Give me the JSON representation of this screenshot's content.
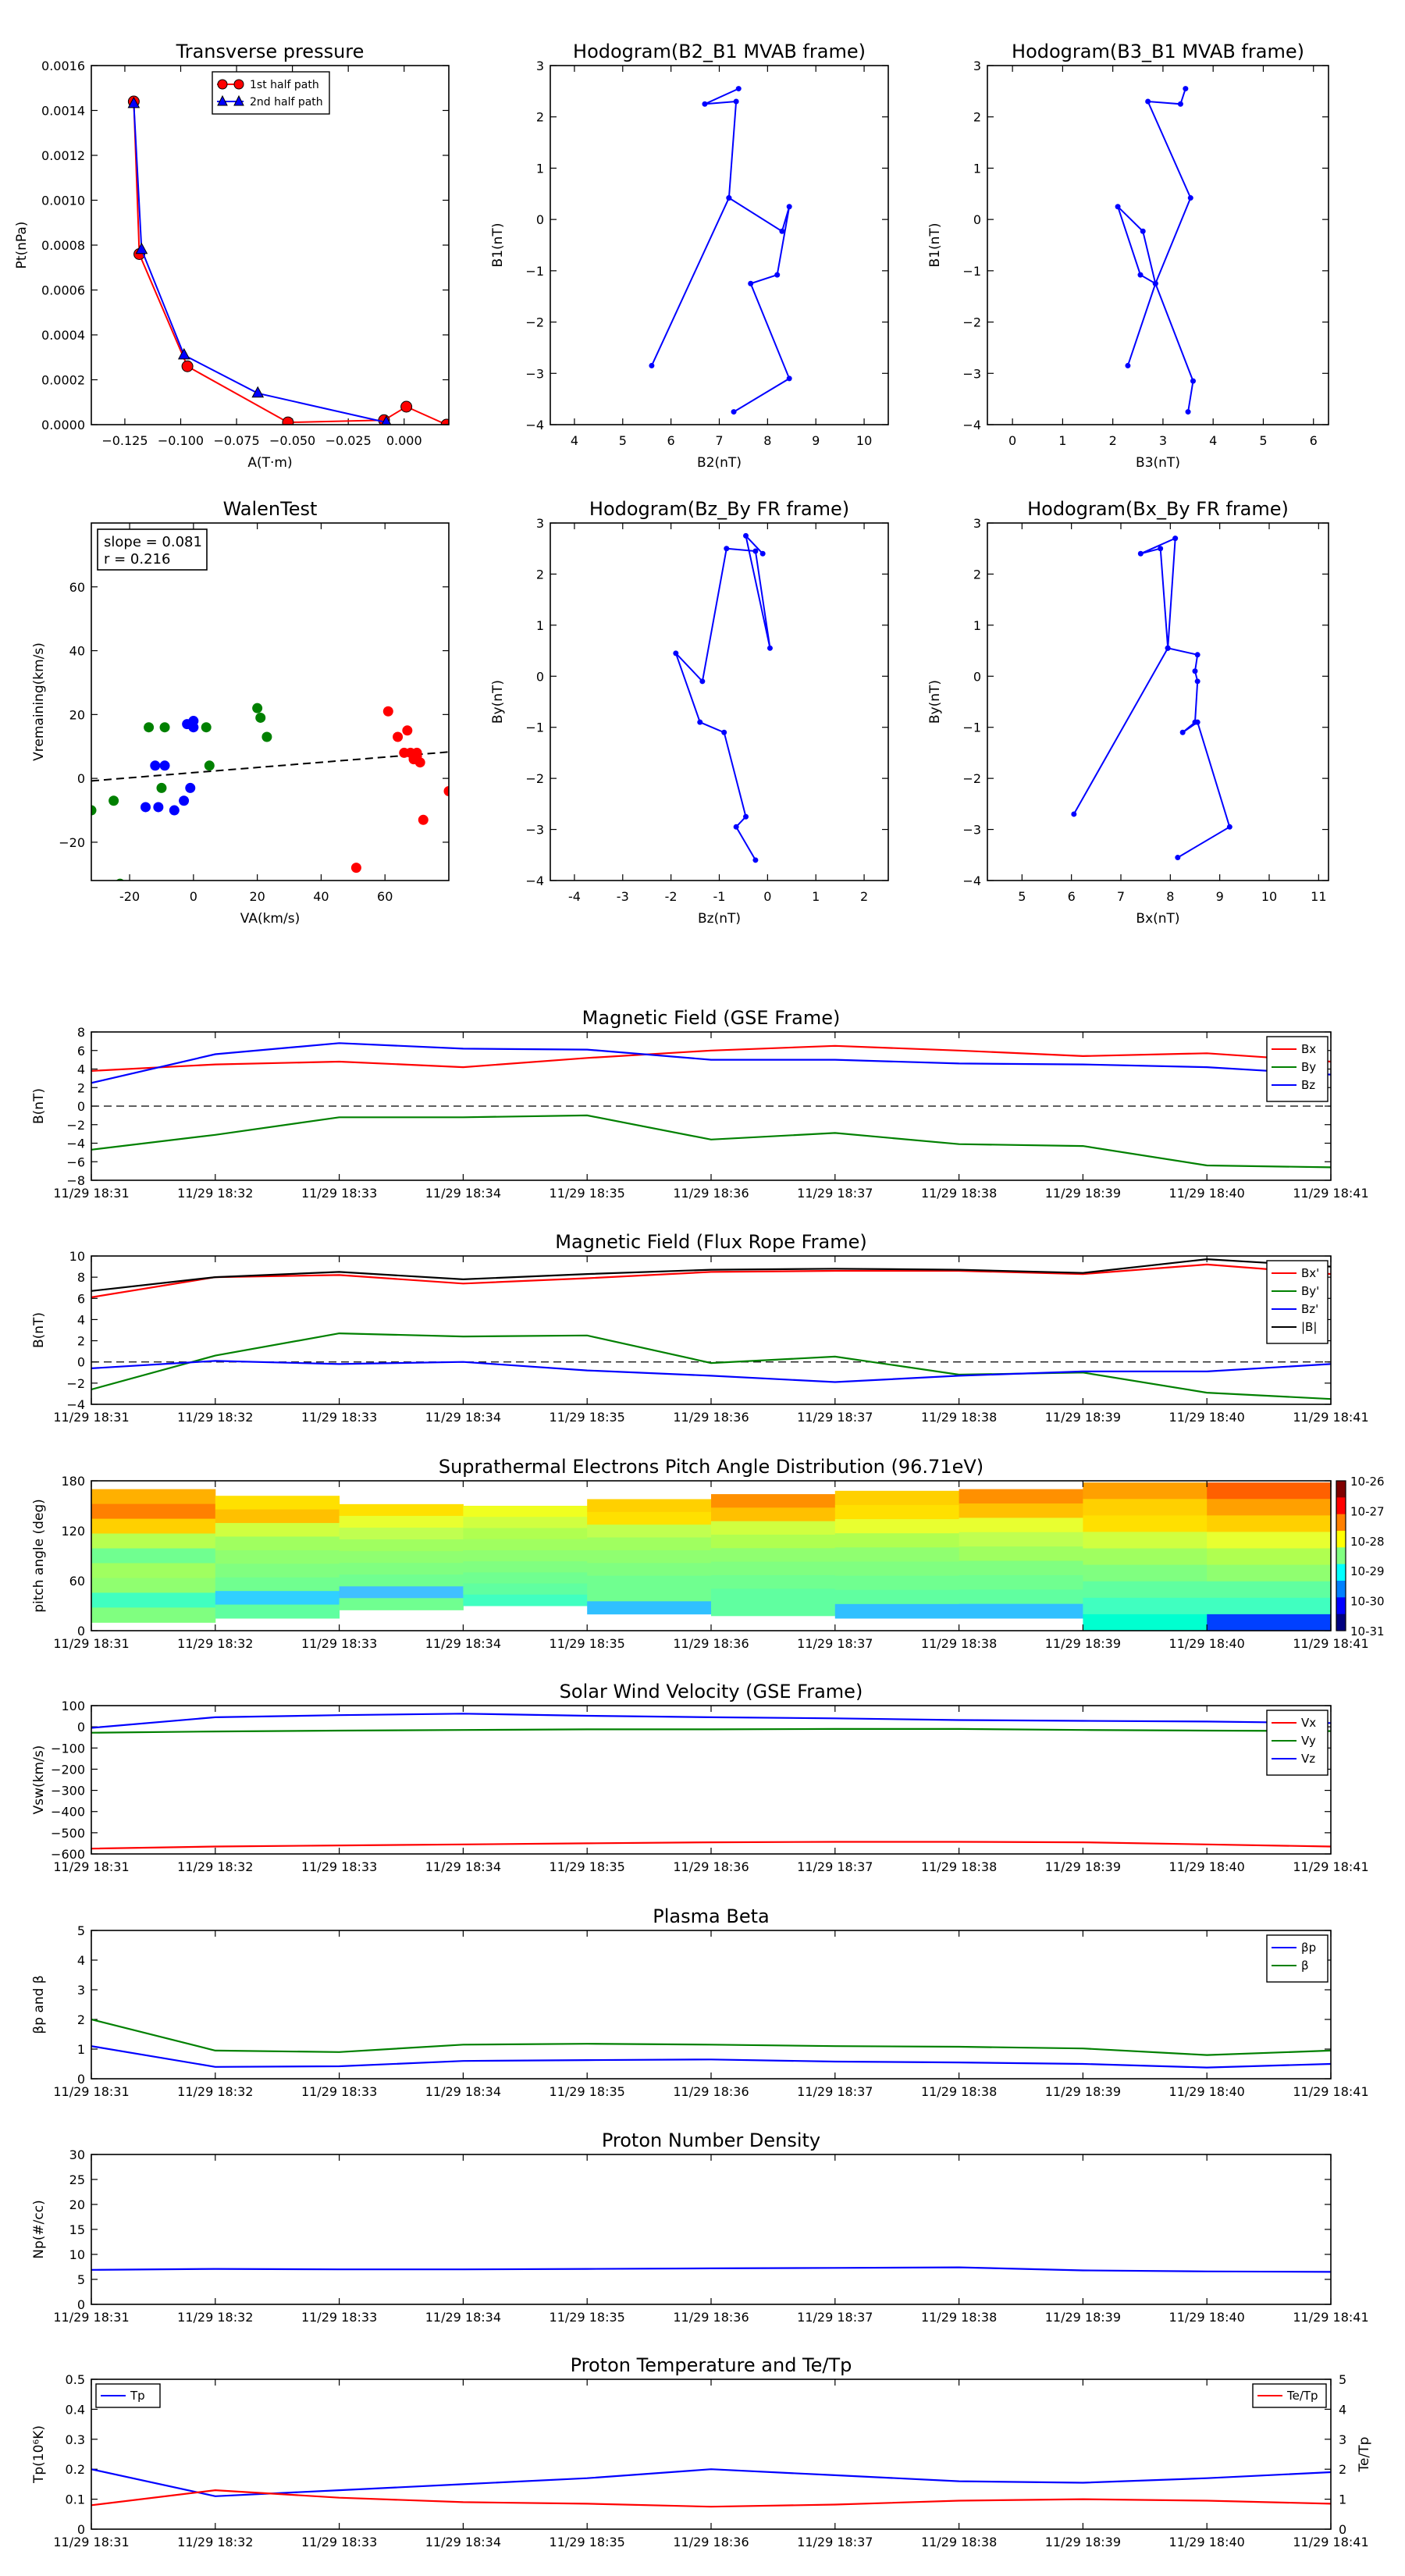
{
  "times": [
    "11/29 18:31",
    "11/29 18:32",
    "11/29 18:33",
    "11/29 18:34",
    "11/29 18:35",
    "11/29 18:36",
    "11/29 18:37",
    "11/29 18:38",
    "11/29 18:39",
    "11/29 18:40",
    "11/29 18:41"
  ],
  "chart_data": [
    {
      "type": "line",
      "title": "Transverse pressure",
      "xlabel": "A(T·m)",
      "ylabel": "Pt(nPa)",
      "xlim": [
        -0.14,
        0.02
      ],
      "ylim": [
        0,
        0.0016
      ],
      "xticks": [
        -0.125,
        -0.1,
        -0.075,
        -0.05,
        -0.025,
        0.0
      ],
      "xtick_labels": [
        "−0.125",
        "−0.100",
        "−0.075",
        "−0.050",
        "−0.025",
        "0.000"
      ],
      "yticks": [
        0,
        0.0002,
        0.0004,
        0.0006,
        0.0008,
        0.001,
        0.0012,
        0.0014,
        0.0016
      ],
      "ytick_labels": [
        "0.0000",
        "0.0002",
        "0.0004",
        "0.0006",
        "0.0008",
        "0.0010",
        "0.0012",
        "0.0014",
        "0.0016"
      ],
      "legend": "upper-right-inside",
      "series": [
        {
          "name": "1st half path",
          "color": "#ff0000",
          "marker": "circle",
          "x": [
            -0.121,
            -0.1185,
            -0.097,
            -0.052,
            -0.009,
            0.001,
            0.019
          ],
          "y": [
            0.00144,
            0.00076,
            0.00026,
            1e-05,
            2e-05,
            8e-05,
            0.0
          ]
        },
        {
          "name": "2nd half path",
          "color": "#0000ff",
          "marker": "triangle",
          "x": [
            -0.121,
            -0.1175,
            -0.0985,
            -0.0655,
            -0.008
          ],
          "y": [
            0.00143,
            0.00078,
            0.00031,
            0.00014,
            1e-05
          ]
        }
      ]
    },
    {
      "type": "line",
      "title": "Hodogram(B2_B1 MVAB frame)",
      "xlabel": "B2(nT)",
      "ylabel": "B1(nT)",
      "xlim": [
        3.5,
        10.5
      ],
      "ylim": [
        -4,
        3
      ],
      "xticks": [
        4,
        5,
        6,
        7,
        8,
        9,
        10
      ],
      "yticks": [
        -4,
        -3,
        -2,
        -1,
        0,
        1,
        2,
        3
      ],
      "series": [
        {
          "color": "#0000ff",
          "x": [
            7.3,
            8.45,
            7.65,
            8.2,
            8.45,
            8.3,
            7.2,
            5.6
          ],
          "y": [
            -3.75,
            -3.1,
            -1.25,
            -1.08,
            0.25,
            -0.23,
            0.42,
            -2.85
          ]
        },
        {
          "color": "#0000ff",
          "x": [
            7.2,
            7.35,
            6.7,
            7.4
          ],
          "y": [
            0.42,
            2.3,
            2.25,
            2.55
          ]
        }
      ]
    },
    {
      "type": "line",
      "title": "Hodogram(B3_B1 MVAB frame)",
      "xlabel": "B3(nT)",
      "ylabel": "B1(nT)",
      "xlim": [
        -0.5,
        6.3
      ],
      "ylim": [
        -4,
        3
      ],
      "xticks": [
        0,
        1,
        2,
        3,
        4,
        5,
        6
      ],
      "yticks": [
        -4,
        -3,
        -2,
        -1,
        0,
        1,
        2,
        3
      ],
      "series": [
        {
          "color": "#0000ff",
          "x": [
            3.5,
            3.6,
            2.85,
            2.55,
            2.1,
            2.6,
            2.85,
            2.3
          ],
          "y": [
            -3.75,
            -3.15,
            -1.25,
            -1.08,
            0.25,
            -0.23,
            -1.25,
            -2.85
          ]
        },
        {
          "color": "#0000ff",
          "x": [
            2.85,
            3.55,
            2.7,
            3.35,
            3.45
          ],
          "y": [
            -1.25,
            0.42,
            2.3,
            2.25,
            2.55
          ]
        }
      ]
    },
    {
      "type": "scatter",
      "title": "WalenTest",
      "xlabel": "VA(km/s)",
      "ylabel": "Vremaining(km/s)",
      "xlim": [
        -32,
        80
      ],
      "ylim": [
        -32,
        80
      ],
      "xticks": [
        -20,
        0,
        20,
        40,
        60
      ],
      "yticks": [
        -20,
        0,
        20,
        40,
        60
      ],
      "annotation": [
        "slope = 0.081",
        "r = 0.216"
      ],
      "fit_line": {
        "slope": 0.081,
        "intercept": 1.8
      },
      "series": [
        {
          "color": "#ff0000",
          "x": [
            61,
            64,
            67,
            66,
            68,
            70,
            69,
            71,
            70,
            72,
            51,
            80
          ],
          "y": [
            21,
            13,
            15,
            8,
            8,
            7,
            6,
            5,
            8,
            -13,
            -28,
            -4
          ]
        },
        {
          "color": "#008000",
          "x": [
            -32,
            -25,
            -14,
            -9,
            20,
            21,
            23,
            4,
            5,
            -10,
            -23
          ],
          "y": [
            -10,
            -7,
            16,
            16,
            22,
            19,
            13,
            16,
            4,
            -3,
            -33
          ]
        },
        {
          "color": "#0000ff",
          "x": [
            -15,
            -11,
            -6,
            -3,
            -1,
            0,
            -2,
            -9,
            -12,
            -1,
            0
          ],
          "y": [
            -9,
            -9,
            -10,
            -7,
            17,
            18,
            17,
            4,
            4,
            -3,
            16
          ]
        }
      ]
    },
    {
      "type": "line",
      "title": "Hodogram(Bz_By FR frame)",
      "xlabel": "Bz(nT)",
      "ylabel": "By(nT)",
      "xlim": [
        -4.5,
        2.5
      ],
      "ylim": [
        -4,
        3
      ],
      "xticks": [
        -4,
        -3,
        -2,
        -1,
        0,
        1,
        2
      ],
      "yticks": [
        -4,
        -3,
        -2,
        -1,
        0,
        1,
        2,
        3
      ],
      "series": [
        {
          "color": "#0000ff",
          "x": [
            -0.25,
            -0.65,
            -0.45,
            -0.9,
            -1.4,
            -1.9,
            -1.35,
            -0.85,
            -0.25,
            0.05,
            -0.45,
            -0.1
          ],
          "y": [
            -3.6,
            -2.95,
            -2.75,
            -1.1,
            -0.9,
            0.45,
            -0.1,
            2.5,
            2.45,
            0.55,
            2.75,
            2.4
          ]
        }
      ]
    },
    {
      "type": "line",
      "title": "Hodogram(Bx_By FR frame)",
      "xlabel": "Bx(nT)",
      "ylabel": "By(nT)",
      "xlim": [
        4.3,
        11.2
      ],
      "ylim": [
        -4,
        3
      ],
      "xticks": [
        5,
        6,
        7,
        8,
        9,
        10,
        11
      ],
      "yticks": [
        -4,
        -3,
        -2,
        -1,
        0,
        1,
        2,
        3
      ],
      "series": [
        {
          "color": "#0000ff",
          "x": [
            6.05,
            7.95,
            8.55,
            8.5,
            8.55,
            8.5,
            8.25,
            8.55,
            9.2,
            8.15
          ],
          "y": [
            -2.7,
            0.55,
            0.42,
            0.1,
            -0.1,
            -0.9,
            -1.1,
            -0.9,
            -2.95,
            -3.55
          ]
        },
        {
          "color": "#0000ff",
          "x": [
            7.95,
            7.8,
            7.4,
            8.1,
            7.95
          ],
          "y": [
            0.55,
            2.5,
            2.4,
            2.7,
            0.55
          ]
        }
      ]
    },
    {
      "type": "line",
      "title": "Magnetic Field (GSE Frame)",
      "ylabel": "B(nT)",
      "ylim": [
        -8,
        8
      ],
      "yticks": [
        -8,
        -6,
        -4,
        -2,
        0,
        2,
        4,
        6,
        8
      ],
      "zero_line": true,
      "legend": "upper-right",
      "series": [
        {
          "name": "Bx",
          "color": "#ff0000",
          "values": [
            3.8,
            4.5,
            4.8,
            4.2,
            5.2,
            6.0,
            6.5,
            6.0,
            5.4,
            5.7,
            4.8
          ]
        },
        {
          "name": "By",
          "color": "#008000",
          "values": [
            -4.7,
            -3.1,
            -1.2,
            -1.2,
            -1.0,
            -3.6,
            -2.9,
            -4.1,
            -4.3,
            -6.4,
            -6.6
          ]
        },
        {
          "name": "Bz",
          "color": "#0000ff",
          "values": [
            2.5,
            5.6,
            6.8,
            6.2,
            6.1,
            5.0,
            5.0,
            4.6,
            4.5,
            4.2,
            3.4
          ]
        }
      ]
    },
    {
      "type": "line",
      "title": "Magnetic Field (Flux Rope Frame)",
      "ylabel": "B(nT)",
      "ylim": [
        -4,
        10
      ],
      "yticks": [
        -4,
        -2,
        0,
        2,
        4,
        6,
        8,
        10
      ],
      "zero_line": true,
      "legend": "upper-right",
      "series": [
        {
          "name": "Bx'",
          "color": "#ff0000",
          "values": [
            6.1,
            8.0,
            8.2,
            7.4,
            7.9,
            8.5,
            8.6,
            8.6,
            8.3,
            9.2,
            8.3
          ]
        },
        {
          "name": "By'",
          "color": "#008000",
          "values": [
            -2.6,
            0.6,
            2.7,
            2.4,
            2.5,
            -0.1,
            0.5,
            -1.2,
            -1.0,
            -2.9,
            -3.5
          ]
        },
        {
          "name": "Bz'",
          "color": "#0000ff",
          "values": [
            -0.6,
            0.1,
            -0.2,
            0.0,
            -0.8,
            -1.3,
            -1.9,
            -1.3,
            -0.9,
            -0.9,
            -0.2
          ]
        },
        {
          "name": "|B|",
          "color": "#000000",
          "values": [
            6.7,
            8.0,
            8.5,
            7.8,
            8.3,
            8.7,
            8.8,
            8.7,
            8.4,
            9.7,
            9.0
          ]
        }
      ]
    },
    {
      "type": "heatmap",
      "title": "Suprathermal Electrons Pitch Angle Distribution (96.71eV)",
      "ylabel": "pitch angle (deg)",
      "ylim": [
        0,
        180
      ],
      "yticks": [
        0,
        60,
        120,
        180
      ],
      "colorbar_ticks": [
        "10-26",
        "10-27",
        "10-28",
        "10-29",
        "10-30",
        "10-31"
      ]
    },
    {
      "type": "line",
      "title": "Solar Wind Velocity (GSE Frame)",
      "ylabel": "Vsw(km/s)",
      "ylim": [
        -600,
        100
      ],
      "yticks": [
        -600,
        -500,
        -400,
        -300,
        -200,
        -100,
        0,
        100
      ],
      "legend": "upper-right",
      "series": [
        {
          "name": "Vx",
          "color": "#ff0000",
          "values": [
            -575,
            -565,
            -560,
            -555,
            -550,
            -545,
            -543,
            -543,
            -545,
            -555,
            -565
          ]
        },
        {
          "name": "Vy",
          "color": "#008000",
          "values": [
            -28,
            -22,
            -18,
            -15,
            -12,
            -12,
            -10,
            -10,
            -15,
            -18,
            -20
          ]
        },
        {
          "name": "Vz",
          "color": "#0000ff",
          "values": [
            -5,
            45,
            55,
            62,
            52,
            45,
            40,
            32,
            28,
            25,
            18
          ]
        }
      ]
    },
    {
      "type": "line",
      "title": "Plasma Beta",
      "ylabel": "βp and β",
      "ylim": [
        0,
        5
      ],
      "yticks": [
        0,
        1,
        2,
        3,
        4,
        5
      ],
      "legend": "upper-right",
      "series": [
        {
          "name": "βp",
          "color": "#0000ff",
          "values": [
            1.1,
            0.4,
            0.42,
            0.6,
            0.63,
            0.65,
            0.58,
            0.55,
            0.5,
            0.38,
            0.5
          ]
        },
        {
          "name": "β",
          "color": "#008000",
          "values": [
            2.0,
            0.95,
            0.9,
            1.15,
            1.18,
            1.15,
            1.1,
            1.08,
            1.02,
            0.8,
            0.95
          ]
        }
      ]
    },
    {
      "type": "line",
      "title": "Proton Number Density",
      "ylabel": "Np(#/cc)",
      "ylim": [
        0,
        30
      ],
      "yticks": [
        0,
        5,
        10,
        15,
        20,
        25,
        30
      ],
      "series": [
        {
          "name": "Np",
          "color": "#0000ff",
          "values": [
            6.9,
            7.1,
            7.0,
            7.0,
            7.1,
            7.2,
            7.3,
            7.4,
            6.8,
            6.6,
            6.5
          ]
        }
      ]
    },
    {
      "type": "line",
      "title": "Proton Temperature and Te/Tp",
      "ylabel": "Tp(10⁶K)",
      "ylabel_right": "Te/Tp",
      "ylim": [
        0,
        0.5
      ],
      "ylim_right": [
        0,
        5
      ],
      "yticks": [
        0,
        0.1,
        0.2,
        0.3,
        0.4,
        0.5
      ],
      "yticks_right": [
        0,
        1,
        2,
        3,
        4,
        5
      ],
      "series": [
        {
          "name": "Tp",
          "axis": "left",
          "color": "#0000ff",
          "values": [
            0.2,
            0.11,
            0.13,
            0.15,
            0.17,
            0.2,
            0.18,
            0.16,
            0.155,
            0.17,
            0.19
          ]
        },
        {
          "name": "Te/Tp",
          "axis": "right",
          "color": "#ff0000",
          "values": [
            0.8,
            1.3,
            1.05,
            0.9,
            0.85,
            0.75,
            0.82,
            0.95,
            1.0,
            0.95,
            0.85
          ]
        }
      ]
    }
  ]
}
